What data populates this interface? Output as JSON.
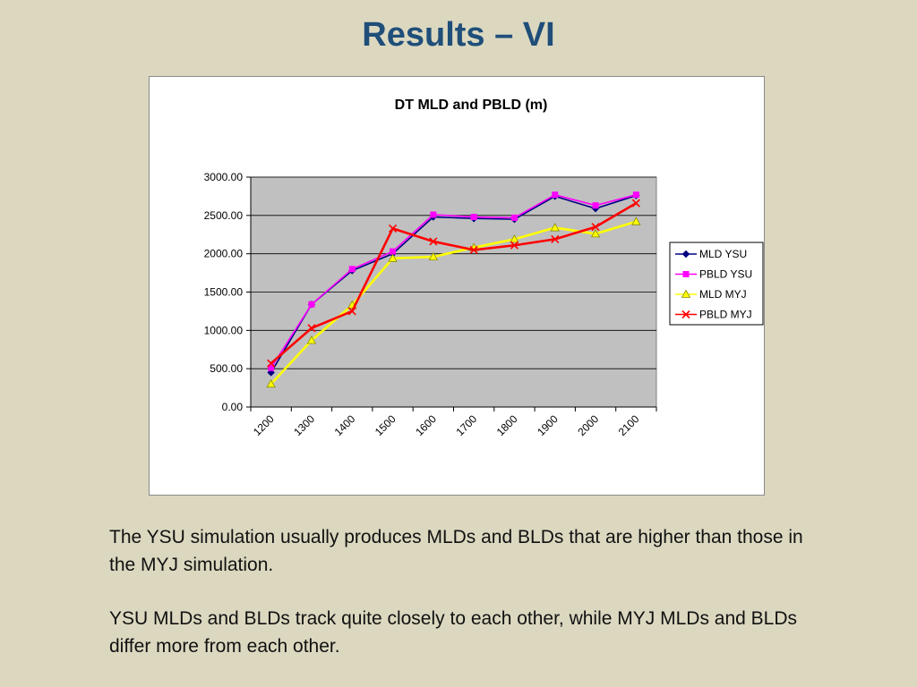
{
  "slide": {
    "title": "Results – VI",
    "paragraphs": [
      "The YSU simulation usually produces MLDs and BLDs that are higher than those in the MYJ simulation.",
      "YSU MLDs and BLDs track quite closely to each other, while MYJ MLDs and BLDs differ more from each other."
    ]
  },
  "chart_data": {
    "type": "line",
    "title": "DT MLD and PBLD (m)",
    "xlabel": "",
    "ylabel": "",
    "categories": [
      "1200",
      "1300",
      "1400",
      "1500",
      "1600",
      "1700",
      "1800",
      "1900",
      "2000",
      "2100"
    ],
    "yticks": [
      "0.00",
      "500.00",
      "1000.00",
      "1500.00",
      "2000.00",
      "2500.00",
      "3000.00"
    ],
    "ylim": [
      0,
      3000
    ],
    "grid": true,
    "plot_background": "#c0c0c0",
    "legend_position": "right",
    "series": [
      {
        "name": "MLD YSU",
        "color": "#000080",
        "marker": "diamond",
        "values": [
          450,
          1340,
          1780,
          2000,
          2480,
          2460,
          2450,
          2750,
          2590,
          2760
        ]
      },
      {
        "name": "PBLD YSU",
        "color": "#ff00ff",
        "marker": "square",
        "values": [
          510,
          1340,
          1800,
          2030,
          2510,
          2480,
          2470,
          2770,
          2630,
          2770
        ]
      },
      {
        "name": "MLD MYJ",
        "color": "#ffff00",
        "marker": "triangle",
        "values": [
          300,
          870,
          1330,
          1940,
          1960,
          2080,
          2190,
          2340,
          2260,
          2420
        ]
      },
      {
        "name": "PBLD MYJ",
        "color": "#ff0000",
        "marker": "x",
        "values": [
          570,
          1030,
          1250,
          2330,
          2160,
          2050,
          2110,
          2190,
          2350,
          2660
        ]
      }
    ]
  }
}
